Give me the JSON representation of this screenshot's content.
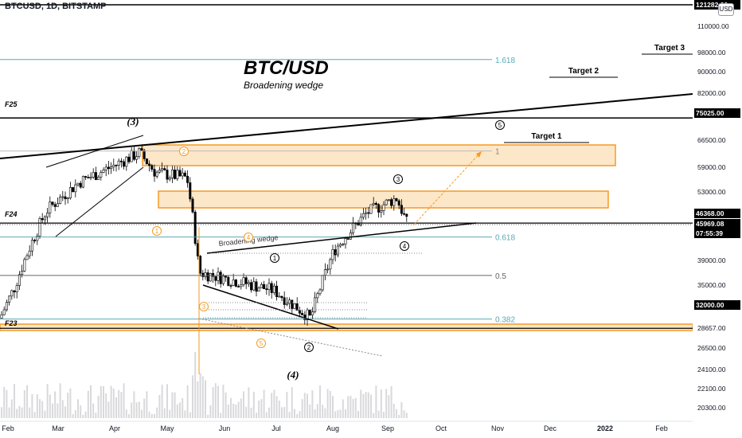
{
  "header": {
    "symbol": "BTCUSD, 1D, BITSTAMP",
    "currency_button": "USD"
  },
  "annotations": {
    "title": "BTC/USD",
    "subtitle": "Broadening wedge",
    "wedge_label": "Broadening wedge",
    "targets": [
      "Target 1",
      "Target 2",
      "Target 3"
    ],
    "fibs": [
      "1.618",
      "1",
      "0.618",
      "0.5",
      "0.382"
    ],
    "levels": [
      "F25",
      "F24",
      "F23"
    ],
    "waves_black": [
      "(3)",
      "(4)",
      "1",
      "2",
      "3",
      "4",
      "5"
    ],
    "waves_orange": [
      "1",
      "2",
      "3",
      "4",
      "5"
    ]
  },
  "chart_data": {
    "type": "candlestick",
    "y_scale": "log",
    "ylim": [
      19000,
      125000
    ],
    "y_ticks": [
      "110000.00",
      "98000.00",
      "90000.00",
      "82000.00",
      "75025.00",
      "66500.00",
      "59000.00",
      "53000.00",
      "46368.00",
      "45969.08",
      "07:55:39",
      "39000.00",
      "35000.00",
      "32000.00",
      "28657.00",
      "26500.00",
      "24100.00",
      "22100.00",
      "20300.00"
    ],
    "x_ticks": [
      "Feb",
      "Mar",
      "Apr",
      "May",
      "Jun",
      "Jul",
      "Aug",
      "Sep",
      "Oct",
      "Nov",
      "Dec",
      "2022",
      "Feb"
    ],
    "price_labels": {
      "top": "121282.00",
      "last": "45969.08",
      "countdown": "07:55:39",
      "f24": "46368.00",
      "f25": "75025.00",
      "f23": "28657.00"
    },
    "key_levels": {
      "F25": 75025,
      "F24": 46368,
      "F23": 28657,
      "fib_1618": 98000,
      "fib_1": 64500,
      "fib_0618": 43500,
      "fib_05": 36500,
      "fib_0382": 29900
    },
    "series_close_approx": [
      {
        "x": "Feb",
        "y": 33000
      },
      {
        "x": "Mar",
        "y": 49000
      },
      {
        "x": "Apr",
        "y": 59000
      },
      {
        "x": "Apr",
        "y": 63500
      },
      {
        "x": "May",
        "y": 57000
      },
      {
        "x": "May",
        "y": 37000
      },
      {
        "x": "Jun",
        "y": 36500
      },
      {
        "x": "Jul",
        "y": 33500
      },
      {
        "x": "Jul",
        "y": 30000
      },
      {
        "x": "Aug",
        "y": 41000
      },
      {
        "x": "Aug",
        "y": 48000
      },
      {
        "x": "Sep",
        "y": 51500
      },
      {
        "x": "Sep",
        "y": 46000
      }
    ]
  }
}
